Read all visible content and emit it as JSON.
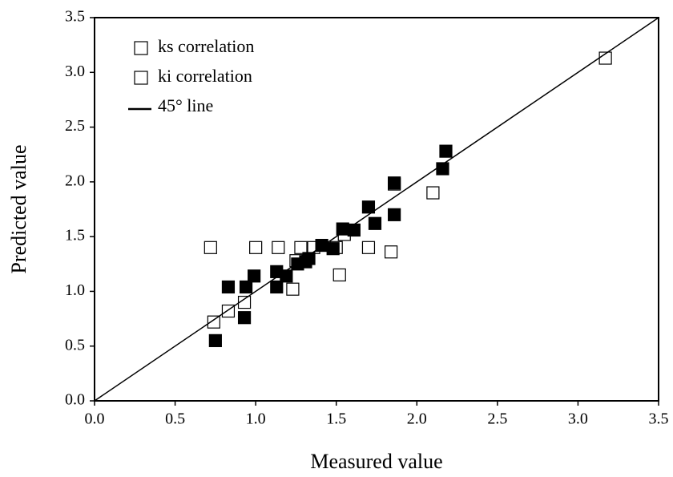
{
  "chart_data": {
    "type": "scatter",
    "xlabel": "Measured value",
    "ylabel": "Predicted value",
    "xlim": [
      0,
      3.5
    ],
    "ylim": [
      0,
      3.5
    ],
    "xticks": [
      {
        "value": 0,
        "label": "0.0"
      },
      0.5,
      {
        "value": 1,
        "label": "1.0"
      },
      1.5,
      {
        "value": 2,
        "label": "2.0"
      },
      2.5,
      {
        "value": 3,
        "label": "3.0"
      },
      3.5
    ],
    "yticks": [
      {
        "value": 0,
        "label": "0.0"
      },
      0.5,
      {
        "value": 1,
        "label": "1.0"
      },
      1.5,
      {
        "value": 2,
        "label": "2.0"
      },
      2.5,
      {
        "value": 3,
        "label": "3.0"
      },
      3.5
    ],
    "legend": "upper left",
    "series": [
      {
        "name": "ks correlation",
        "marker": "open-square",
        "color": "#000000",
        "x": [
          0.72,
          0.74,
          0.83,
          0.93,
          1.0,
          1.14,
          1.23,
          1.25,
          1.28,
          1.36,
          1.5,
          1.52,
          1.55,
          1.7,
          1.84,
          2.1,
          1.86,
          3.17
        ],
        "values": [
          1.4,
          0.72,
          0.82,
          0.9,
          1.4,
          1.4,
          1.02,
          1.28,
          1.4,
          1.4,
          1.4,
          1.15,
          1.52,
          1.4,
          1.36,
          1.9,
          1.98,
          3.13
        ]
      },
      {
        "name": "ki correlation",
        "marker": "filled-square",
        "color": "#000000",
        "x": [
          0.75,
          0.83,
          0.93,
          0.94,
          0.99,
          1.13,
          1.13,
          1.19,
          1.26,
          1.31,
          1.33,
          1.41,
          1.48,
          1.54,
          1.61,
          1.7,
          1.74,
          1.86,
          1.86,
          2.16,
          2.18
        ],
        "values": [
          0.55,
          1.04,
          0.76,
          1.04,
          1.14,
          1.18,
          1.04,
          1.14,
          1.25,
          1.27,
          1.3,
          1.42,
          1.39,
          1.57,
          1.56,
          1.77,
          1.62,
          1.7,
          1.99,
          2.12,
          2.28
        ]
      },
      {
        "name": "45° line",
        "marker": "line",
        "color": "#000000",
        "x": [
          0,
          3.5
        ],
        "values": [
          0,
          3.5
        ]
      }
    ]
  }
}
